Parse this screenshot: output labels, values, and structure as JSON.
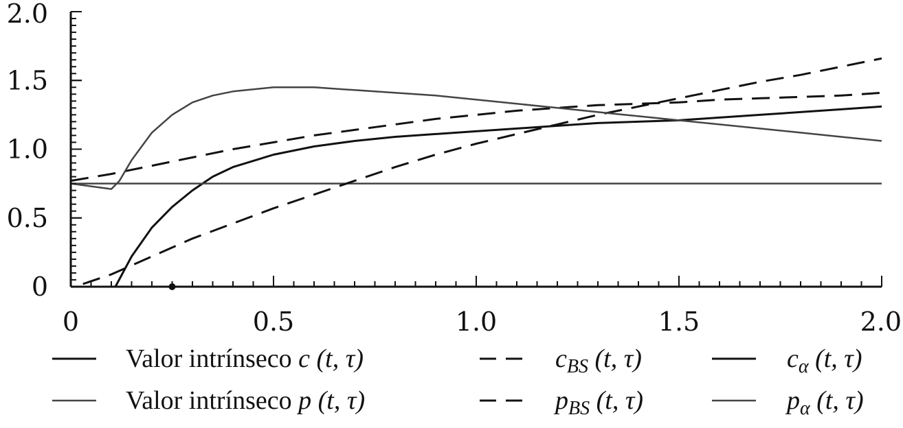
{
  "chart_data": {
    "type": "line",
    "xlim": [
      0,
      2.0
    ],
    "ylim": [
      0,
      2.0
    ],
    "grid": false,
    "legend_position": "bottom",
    "x_ticks": [
      {
        "value": 0,
        "label": "0"
      },
      {
        "value": 0.5,
        "label": "0.5"
      },
      {
        "value": 1.0,
        "label": "1.0"
      },
      {
        "value": 1.5,
        "label": "1.5"
      },
      {
        "value": 2.0,
        "label": "2.0"
      }
    ],
    "y_ticks": [
      {
        "value": 0,
        "label": "0"
      },
      {
        "value": 0.5,
        "label": "0.5"
      },
      {
        "value": 1.0,
        "label": "1.0"
      },
      {
        "value": 1.5,
        "label": "1.5"
      },
      {
        "value": 2.0,
        "label": "2.0"
      }
    ],
    "series": [
      {
        "name": "Valor intrínseco c(t, τ)",
        "style": "solid",
        "color": "#111111",
        "x": [
          0,
          0.25,
          2.0
        ],
        "y": [
          0,
          0,
          0
        ]
      },
      {
        "name": "c_BS(t, τ)",
        "style": "dashed",
        "color": "#111111",
        "x": [
          0,
          0.1,
          0.2,
          0.3,
          0.4,
          0.5,
          0.6,
          0.7,
          0.8,
          0.9,
          1.0,
          1.1,
          1.2,
          1.3,
          1.4,
          1.5,
          1.6,
          1.7,
          1.8,
          1.9,
          2.0
        ],
        "y": [
          0.77,
          0.82,
          0.88,
          0.94,
          1.0,
          1.05,
          1.1,
          1.14,
          1.18,
          1.22,
          1.25,
          1.28,
          1.3,
          1.32,
          1.33,
          1.34,
          1.36,
          1.37,
          1.38,
          1.39,
          1.41
        ]
      },
      {
        "name": "c_α(t, τ)",
        "style": "solid",
        "color": "#111111",
        "x": [
          0.11,
          0.15,
          0.2,
          0.25,
          0.3,
          0.35,
          0.4,
          0.5,
          0.6,
          0.7,
          0.8,
          0.9,
          1.0,
          1.1,
          1.2,
          1.3,
          1.4,
          1.5,
          1.6,
          1.7,
          1.8,
          1.9,
          2.0
        ],
        "y": [
          0,
          0.22,
          0.43,
          0.58,
          0.7,
          0.8,
          0.87,
          0.96,
          1.02,
          1.06,
          1.09,
          1.11,
          1.13,
          1.15,
          1.17,
          1.19,
          1.2,
          1.21,
          1.23,
          1.25,
          1.27,
          1.29,
          1.31
        ]
      },
      {
        "name": "Valor intrínseco p(t, τ)",
        "style": "solid",
        "color": "#444444",
        "x": [
          0,
          2.0
        ],
        "y": [
          0.75,
          0.75
        ]
      },
      {
        "name": "p_BS(t, τ)",
        "style": "dashed",
        "color": "#111111",
        "x": [
          0.03,
          0.1,
          0.2,
          0.3,
          0.4,
          0.5,
          0.6,
          0.7,
          0.8,
          0.9,
          1.0,
          1.1,
          1.2,
          1.3,
          1.4,
          1.5,
          1.6,
          1.7,
          1.8,
          1.9,
          2.0
        ],
        "y": [
          0.02,
          0.09,
          0.22,
          0.35,
          0.46,
          0.57,
          0.67,
          0.77,
          0.87,
          0.96,
          1.04,
          1.11,
          1.18,
          1.25,
          1.31,
          1.37,
          1.43,
          1.49,
          1.54,
          1.6,
          1.66
        ]
      },
      {
        "name": "p_α(t, τ)",
        "style": "solid",
        "color": "#444444",
        "x": [
          0,
          0.05,
          0.1,
          0.12,
          0.15,
          0.2,
          0.25,
          0.3,
          0.35,
          0.4,
          0.5,
          0.6,
          0.7,
          0.8,
          0.9,
          1.0,
          1.1,
          1.2,
          1.3,
          1.4,
          1.5,
          1.6,
          1.7,
          1.8,
          1.9,
          2.0
        ],
        "y": [
          0.75,
          0.73,
          0.71,
          0.77,
          0.92,
          1.12,
          1.25,
          1.34,
          1.39,
          1.42,
          1.45,
          1.45,
          1.43,
          1.41,
          1.39,
          1.36,
          1.33,
          1.3,
          1.27,
          1.24,
          1.21,
          1.18,
          1.15,
          1.12,
          1.09,
          1.06
        ]
      }
    ],
    "annotations": [
      {
        "type": "point",
        "x": 0.25,
        "y": 0
      }
    ]
  },
  "legend": {
    "rows": [
      [
        {
          "series": 0,
          "prefix": "Valor intrínseco ",
          "sym": "c",
          "sub": "",
          "args": "(t, τ)"
        },
        {
          "series": 1,
          "prefix": "",
          "sym": "c",
          "sub": "BS",
          "args": "(t, τ)"
        },
        {
          "series": 2,
          "prefix": "",
          "sym": "c",
          "sub": "α",
          "args": "(t, τ)"
        }
      ],
      [
        {
          "series": 3,
          "prefix": "Valor intrínseco ",
          "sym": "p",
          "sub": "",
          "args": "(t, τ)"
        },
        {
          "series": 4,
          "prefix": "",
          "sym": "p",
          "sub": "BS",
          "args": "(t, τ)"
        },
        {
          "series": 5,
          "prefix": "",
          "sym": "p",
          "sub": "α",
          "args": "(t, τ)"
        }
      ]
    ]
  }
}
